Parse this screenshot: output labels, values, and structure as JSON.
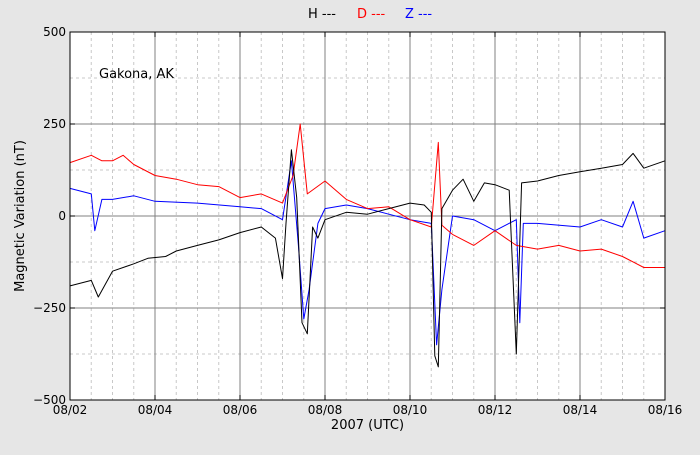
{
  "chart_data": {
    "type": "line",
    "legend": [
      "H ---",
      "D ---",
      "Z ---"
    ],
    "annotation": "Gakona, AK",
    "xlabel": "2007 (UTC)",
    "ylabel": "Magnetic Variation (nT)",
    "x_ticks": [
      "08/02",
      "08/04",
      "08/06",
      "08/08",
      "08/10",
      "08/12",
      "08/14",
      "08/16"
    ],
    "x_range": [
      "08/02",
      "08/16"
    ],
    "y_ticks": [
      500,
      250,
      0,
      -250,
      -500
    ],
    "y_tick_labels": [
      "500",
      "250",
      "0",
      "−250",
      "−500"
    ],
    "ylim": [
      -500,
      500
    ],
    "grid": true,
    "legend_position": "top-center",
    "series": [
      {
        "name": "H ---",
        "color": "#000000",
        "points": [
          [
            "08/02 00:00",
            -190
          ],
          [
            "08/02 12:00",
            -175
          ],
          [
            "08/02 16:00",
            -220
          ],
          [
            "08/03 00:00",
            -150
          ],
          [
            "08/03 12:00",
            -130
          ],
          [
            "08/03 20:00",
            -115
          ],
          [
            "08/04 06:00",
            -110
          ],
          [
            "08/04 12:00",
            -95
          ],
          [
            "08/05 00:00",
            -80
          ],
          [
            "08/05 12:00",
            -65
          ],
          [
            "08/06 00:00",
            -45
          ],
          [
            "08/06 12:00",
            -30
          ],
          [
            "08/06 20:00",
            -60
          ],
          [
            "08/07 00:00",
            -170
          ],
          [
            "08/07 02:00",
            -20
          ],
          [
            "08/07 05:00",
            180
          ],
          [
            "08/07 08:00",
            50
          ],
          [
            "08/07 11:00",
            -290
          ],
          [
            "08/07 14:00",
            -320
          ],
          [
            "08/07 17:00",
            -30
          ],
          [
            "08/07 20:00",
            -60
          ],
          [
            "08/08 00:00",
            -10
          ],
          [
            "08/08 12:00",
            10
          ],
          [
            "08/09 00:00",
            5
          ],
          [
            "08/09 12:00",
            20
          ],
          [
            "08/10 00:00",
            35
          ],
          [
            "08/10 08:00",
            30
          ],
          [
            "08/10 12:00",
            10
          ],
          [
            "08/10 14:00",
            -380
          ],
          [
            "08/10 16:00",
            -410
          ],
          [
            "08/10 18:00",
            20
          ],
          [
            "08/11 00:00",
            70
          ],
          [
            "08/11 06:00",
            100
          ],
          [
            "08/11 12:00",
            40
          ],
          [
            "08/11 18:00",
            90
          ],
          [
            "08/12 00:00",
            85
          ],
          [
            "08/12 08:00",
            70
          ],
          [
            "08/12 12:00",
            -375
          ],
          [
            "08/12 15:00",
            90
          ],
          [
            "08/13 00:00",
            95
          ],
          [
            "08/13 12:00",
            110
          ],
          [
            "08/14 00:00",
            120
          ],
          [
            "08/14 12:00",
            130
          ],
          [
            "08/15 00:00",
            140
          ],
          [
            "08/15 06:00",
            170
          ],
          [
            "08/15 12:00",
            130
          ],
          [
            "08/16 00:00",
            150
          ]
        ]
      },
      {
        "name": "D ---",
        "color": "#ff0000",
        "points": [
          [
            "08/02 00:00",
            145
          ],
          [
            "08/02 12:00",
            165
          ],
          [
            "08/02 18:00",
            150
          ],
          [
            "08/03 00:00",
            150
          ],
          [
            "08/03 06:00",
            165
          ],
          [
            "08/03 12:00",
            140
          ],
          [
            "08/04 00:00",
            110
          ],
          [
            "08/04 12:00",
            100
          ],
          [
            "08/05 00:00",
            85
          ],
          [
            "08/05 12:00",
            80
          ],
          [
            "08/06 00:00",
            50
          ],
          [
            "08/06 12:00",
            60
          ],
          [
            "08/07 00:00",
            35
          ],
          [
            "08/07 06:00",
            110
          ],
          [
            "08/07 10:00",
            250
          ],
          [
            "08/07 14:00",
            60
          ],
          [
            "08/08 00:00",
            95
          ],
          [
            "08/08 12:00",
            45
          ],
          [
            "08/09 00:00",
            20
          ],
          [
            "08/09 12:00",
            25
          ],
          [
            "08/10 00:00",
            -10
          ],
          [
            "08/10 12:00",
            -30
          ],
          [
            "08/10 16:00",
            200
          ],
          [
            "08/10 18:00",
            -25
          ],
          [
            "08/11 00:00",
            -50
          ],
          [
            "08/11 12:00",
            -80
          ],
          [
            "08/12 00:00",
            -40
          ],
          [
            "08/12 12:00",
            -80
          ],
          [
            "08/13 00:00",
            -90
          ],
          [
            "08/13 12:00",
            -80
          ],
          [
            "08/14 00:00",
            -95
          ],
          [
            "08/14 12:00",
            -90
          ],
          [
            "08/15 00:00",
            -110
          ],
          [
            "08/15 12:00",
            -140
          ],
          [
            "08/16 00:00",
            -140
          ]
        ]
      },
      {
        "name": "Z ---",
        "color": "#0000ff",
        "points": [
          [
            "08/02 00:00",
            75
          ],
          [
            "08/02 12:00",
            60
          ],
          [
            "08/02 14:00",
            -40
          ],
          [
            "08/02 18:00",
            45
          ],
          [
            "08/03 00:00",
            45
          ],
          [
            "08/03 12:00",
            55
          ],
          [
            "08/04 00:00",
            40
          ],
          [
            "08/05 00:00",
            35
          ],
          [
            "08/06 00:00",
            25
          ],
          [
            "08/06 12:00",
            20
          ],
          [
            "08/07 00:00",
            -10
          ],
          [
            "08/07 05:00",
            150
          ],
          [
            "08/07 09:00",
            -80
          ],
          [
            "08/07 12:00",
            -280
          ],
          [
            "08/07 15:00",
            -200
          ],
          [
            "08/07 20:00",
            -20
          ],
          [
            "08/08 00:00",
            20
          ],
          [
            "08/08 12:00",
            30
          ],
          [
            "08/09 00:00",
            20
          ],
          [
            "08/09 12:00",
            5
          ],
          [
            "08/10 00:00",
            -10
          ],
          [
            "08/10 12:00",
            -20
          ],
          [
            "08/10 15:00",
            -350
          ],
          [
            "08/10 18:00",
            -200
          ],
          [
            "08/11 00:00",
            0
          ],
          [
            "08/11 12:00",
            -10
          ],
          [
            "08/12 00:00",
            -40
          ],
          [
            "08/12 12:00",
            -10
          ],
          [
            "08/12 14:00",
            -290
          ],
          [
            "08/12 16:00",
            -20
          ],
          [
            "08/13 00:00",
            -20
          ],
          [
            "08/14 00:00",
            -30
          ],
          [
            "08/14 12:00",
            -10
          ],
          [
            "08/15 00:00",
            -30
          ],
          [
            "08/15 06:00",
            40
          ],
          [
            "08/15 12:00",
            -60
          ],
          [
            "08/16 00:00",
            -40
          ]
        ]
      }
    ]
  }
}
